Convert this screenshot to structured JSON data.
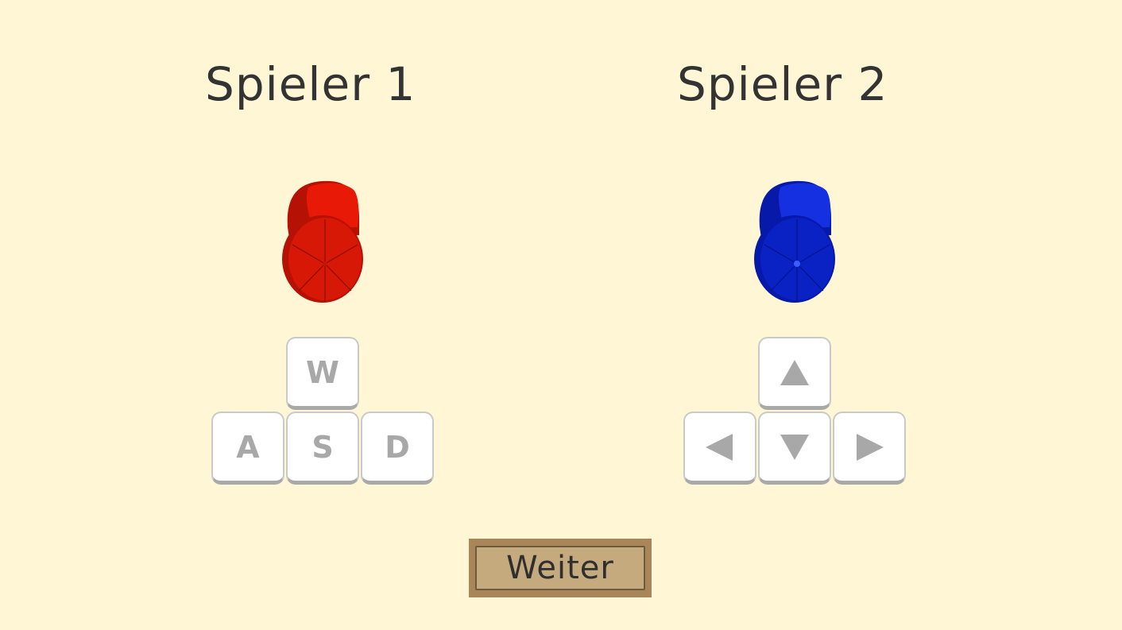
{
  "players": [
    {
      "title": "Spieler 1",
      "cap_color": "#e01a06",
      "keys": {
        "up": "W",
        "left": "A",
        "down": "S",
        "right": "D"
      }
    },
    {
      "title": "Spieler 2",
      "cap_color": "#0a24cc",
      "keys": {
        "up": "up-arrow-icon",
        "left": "left-arrow-icon",
        "down": "down-arrow-icon",
        "right": "right-arrow-icon"
      }
    }
  ],
  "continue_button": {
    "label": "Weiter"
  },
  "colors": {
    "background": "#fff6d6",
    "text": "#333333",
    "key_glyph": "#a8a8a8",
    "button_frame": "#a8865a",
    "button_face": "#c4aa7c"
  }
}
